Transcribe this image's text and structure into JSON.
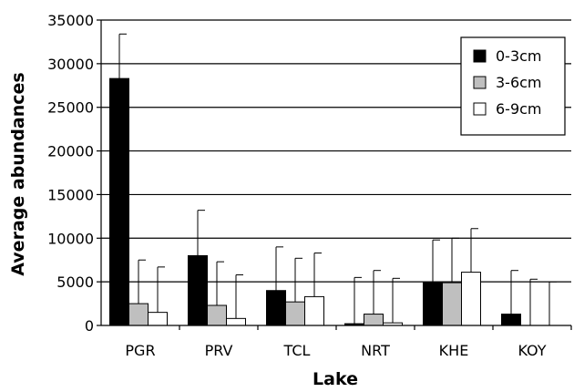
{
  "chart_data": {
    "type": "bar",
    "title": "",
    "xlabel": "Lake",
    "ylabel": "Average abundances",
    "categories": [
      "PGR",
      "PRV",
      "TCL",
      "NRT",
      "KHE",
      "KOY"
    ],
    "ylim": [
      0,
      35000
    ],
    "yticks": [
      0,
      5000,
      10000,
      15000,
      20000,
      25000,
      30000,
      35000
    ],
    "ytick_labels": [
      "0",
      "5000",
      "10000",
      "15000",
      "20000",
      "25000",
      "30000",
      "35000"
    ],
    "grid": "horizontal",
    "legend_position": "top-right",
    "series": [
      {
        "name": "0-3cm",
        "color": "#000000",
        "values": [
          28300,
          8000,
          4000,
          200,
          4900,
          1300
        ],
        "error": [
          5100,
          5200,
          5000,
          5300,
          4900,
          5000
        ]
      },
      {
        "name": "3-6cm",
        "color": "#bfbfbf",
        "values": [
          2500,
          2300,
          2700,
          1300,
          4900,
          0
        ],
        "error": [
          5000,
          5000,
          5000,
          5000,
          5100,
          5300
        ]
      },
      {
        "name": "6-9cm",
        "color": "#ffffff",
        "values": [
          1500,
          800,
          3300,
          300,
          6100,
          0
        ],
        "error": [
          5200,
          5000,
          5000,
          5100,
          5000,
          5000
        ]
      }
    ]
  }
}
